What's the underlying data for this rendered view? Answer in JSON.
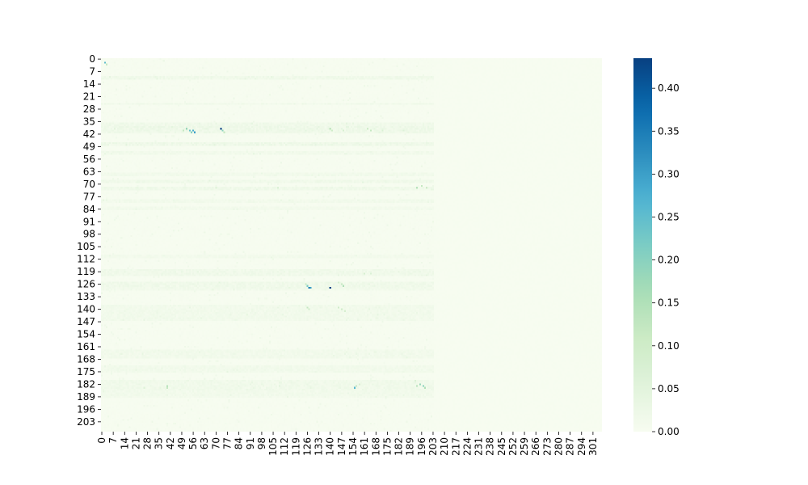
{
  "chart_data": {
    "type": "heatmap",
    "title": "",
    "xlabel": "",
    "ylabel": "",
    "colormap": "GnBu",
    "n_cols": 307,
    "n_rows": 209,
    "x_tick_labels": [
      "0",
      "7",
      "14",
      "21",
      "28",
      "35",
      "42",
      "49",
      "56",
      "63",
      "70",
      "77",
      "84",
      "91",
      "98",
      "105",
      "112",
      "119",
      "126",
      "133",
      "140",
      "147",
      "154",
      "161",
      "168",
      "175",
      "182",
      "189",
      "196",
      "203",
      "210",
      "217",
      "224",
      "231",
      "238",
      "245",
      "252",
      "259",
      "266",
      "273",
      "280",
      "287",
      "294",
      "301"
    ],
    "y_tick_labels": [
      "0",
      "7",
      "14",
      "21",
      "28",
      "35",
      "42",
      "49",
      "56",
      "63",
      "70",
      "77",
      "84",
      "91",
      "98",
      "105",
      "112",
      "119",
      "126",
      "133",
      "140",
      "147",
      "154",
      "161",
      "168",
      "175",
      "182",
      "189",
      "196",
      "203"
    ],
    "colorbar": {
      "range": [
        0,
        0.435
      ],
      "tick_values": [
        0.0,
        0.05,
        0.1,
        0.15,
        0.2,
        0.25,
        0.3,
        0.35,
        0.4
      ],
      "tick_labels": [
        "0.00",
        "0.05",
        "0.10",
        "0.15",
        "0.20",
        "0.25",
        "0.30",
        "0.35",
        "0.40"
      ]
    },
    "background_value": 0.004,
    "active_column_limit": 204,
    "hotspots": [
      {
        "row": 2,
        "col": 2,
        "value": 0.25
      },
      {
        "row": 3,
        "col": 3,
        "value": 0.12
      },
      {
        "row": 39,
        "col": 52,
        "value": 0.18
      },
      {
        "row": 40,
        "col": 54,
        "value": 0.24
      },
      {
        "row": 40,
        "col": 56,
        "value": 0.28
      },
      {
        "row": 41,
        "col": 57,
        "value": 0.3
      },
      {
        "row": 41,
        "col": 55,
        "value": 0.2
      },
      {
        "row": 40,
        "col": 50,
        "value": 0.12
      },
      {
        "row": 39,
        "col": 73,
        "value": 0.43
      },
      {
        "row": 40,
        "col": 74,
        "value": 0.2
      },
      {
        "row": 41,
        "col": 75,
        "value": 0.12
      },
      {
        "row": 39,
        "col": 140,
        "value": 0.12
      },
      {
        "row": 40,
        "col": 141,
        "value": 0.1
      },
      {
        "row": 40,
        "col": 148,
        "value": 0.08
      },
      {
        "row": 40,
        "col": 165,
        "value": 0.12
      },
      {
        "row": 39,
        "col": 163,
        "value": 0.1
      },
      {
        "row": 40,
        "col": 172,
        "value": 0.07
      },
      {
        "row": 40,
        "col": 185,
        "value": 0.06
      },
      {
        "row": 72,
        "col": 193,
        "value": 0.14
      },
      {
        "row": 71,
        "col": 196,
        "value": 0.12
      },
      {
        "row": 72,
        "col": 199,
        "value": 0.1
      },
      {
        "row": 72,
        "col": 70,
        "value": 0.06
      },
      {
        "row": 72,
        "col": 108,
        "value": 0.07
      },
      {
        "row": 127,
        "col": 126,
        "value": 0.22
      },
      {
        "row": 128,
        "col": 127,
        "value": 0.35
      },
      {
        "row": 128,
        "col": 128,
        "value": 0.3
      },
      {
        "row": 126,
        "col": 125,
        "value": 0.12
      },
      {
        "row": 128,
        "col": 140,
        "value": 0.43
      },
      {
        "row": 126,
        "col": 147,
        "value": 0.12
      },
      {
        "row": 127,
        "col": 148,
        "value": 0.15
      },
      {
        "row": 125,
        "col": 145,
        "value": 0.08
      },
      {
        "row": 120,
        "col": 161,
        "value": 0.08
      },
      {
        "row": 120,
        "col": 165,
        "value": 0.07
      },
      {
        "row": 139,
        "col": 126,
        "value": 0.12
      },
      {
        "row": 140,
        "col": 127,
        "value": 0.1
      },
      {
        "row": 139,
        "col": 145,
        "value": 0.1
      },
      {
        "row": 140,
        "col": 147,
        "value": 0.1
      },
      {
        "row": 141,
        "col": 149,
        "value": 0.08
      },
      {
        "row": 184,
        "col": 155,
        "value": 0.26
      },
      {
        "row": 183,
        "col": 156,
        "value": 0.12
      },
      {
        "row": 182,
        "col": 158,
        "value": 0.08
      },
      {
        "row": 183,
        "col": 193,
        "value": 0.14
      },
      {
        "row": 182,
        "col": 195,
        "value": 0.18
      },
      {
        "row": 183,
        "col": 197,
        "value": 0.2
      },
      {
        "row": 184,
        "col": 198,
        "value": 0.15
      },
      {
        "row": 180,
        "col": 192,
        "value": 0.07
      },
      {
        "row": 183,
        "col": 40,
        "value": 0.14
      },
      {
        "row": 184,
        "col": 40,
        "value": 0.12
      },
      {
        "row": 184,
        "col": 26,
        "value": 0.06
      },
      {
        "row": 183,
        "col": 109,
        "value": 0.05
      }
    ],
    "row_bands": [
      {
        "row": 10,
        "value": 0.02
      },
      {
        "row": 11,
        "value": 0.02
      },
      {
        "row": 25,
        "value": 0.018
      },
      {
        "row": 36,
        "value": 0.02
      },
      {
        "row": 37,
        "value": 0.02
      },
      {
        "row": 38,
        "value": 0.025
      },
      {
        "row": 39,
        "value": 0.025
      },
      {
        "row": 40,
        "value": 0.025
      },
      {
        "row": 41,
        "value": 0.02
      },
      {
        "row": 47,
        "value": 0.025
      },
      {
        "row": 48,
        "value": 0.025
      },
      {
        "row": 52,
        "value": 0.015
      },
      {
        "row": 53,
        "value": 0.015
      },
      {
        "row": 64,
        "value": 0.015
      },
      {
        "row": 65,
        "value": 0.015
      },
      {
        "row": 68,
        "value": 0.02
      },
      {
        "row": 69,
        "value": 0.02
      },
      {
        "row": 72,
        "value": 0.022
      },
      {
        "row": 73,
        "value": 0.02
      },
      {
        "row": 79,
        "value": 0.015
      },
      {
        "row": 80,
        "value": 0.015
      },
      {
        "row": 83,
        "value": 0.012
      },
      {
        "row": 84,
        "value": 0.012
      },
      {
        "row": 110,
        "value": 0.012
      },
      {
        "row": 111,
        "value": 0.012
      },
      {
        "row": 118,
        "value": 0.018
      },
      {
        "row": 119,
        "value": 0.02
      },
      {
        "row": 120,
        "value": 0.02
      },
      {
        "row": 121,
        "value": 0.02
      },
      {
        "row": 125,
        "value": 0.02
      },
      {
        "row": 126,
        "value": 0.02
      },
      {
        "row": 127,
        "value": 0.02
      },
      {
        "row": 128,
        "value": 0.018
      },
      {
        "row": 129,
        "value": 0.015
      },
      {
        "row": 138,
        "value": 0.015
      },
      {
        "row": 139,
        "value": 0.015
      },
      {
        "row": 140,
        "value": 0.015
      },
      {
        "row": 141,
        "value": 0.015
      },
      {
        "row": 142,
        "value": 0.015
      },
      {
        "row": 143,
        "value": 0.015
      },
      {
        "row": 144,
        "value": 0.015
      },
      {
        "row": 145,
        "value": 0.015
      },
      {
        "row": 146,
        "value": 0.015
      },
      {
        "row": 163,
        "value": 0.015
      },
      {
        "row": 164,
        "value": 0.015
      },
      {
        "row": 165,
        "value": 0.015
      },
      {
        "row": 166,
        "value": 0.015
      },
      {
        "row": 167,
        "value": 0.015
      },
      {
        "row": 172,
        "value": 0.015
      },
      {
        "row": 173,
        "value": 0.015
      },
      {
        "row": 174,
        "value": 0.015
      },
      {
        "row": 175,
        "value": 0.015
      },
      {
        "row": 180,
        "value": 0.018
      },
      {
        "row": 181,
        "value": 0.018
      },
      {
        "row": 182,
        "value": 0.018
      },
      {
        "row": 183,
        "value": 0.018
      },
      {
        "row": 184,
        "value": 0.018
      },
      {
        "row": 185,
        "value": 0.018
      },
      {
        "row": 186,
        "value": 0.015
      },
      {
        "row": 187,
        "value": 0.015
      },
      {
        "row": 188,
        "value": 0.015
      },
      {
        "row": 189,
        "value": 0.012
      }
    ]
  }
}
